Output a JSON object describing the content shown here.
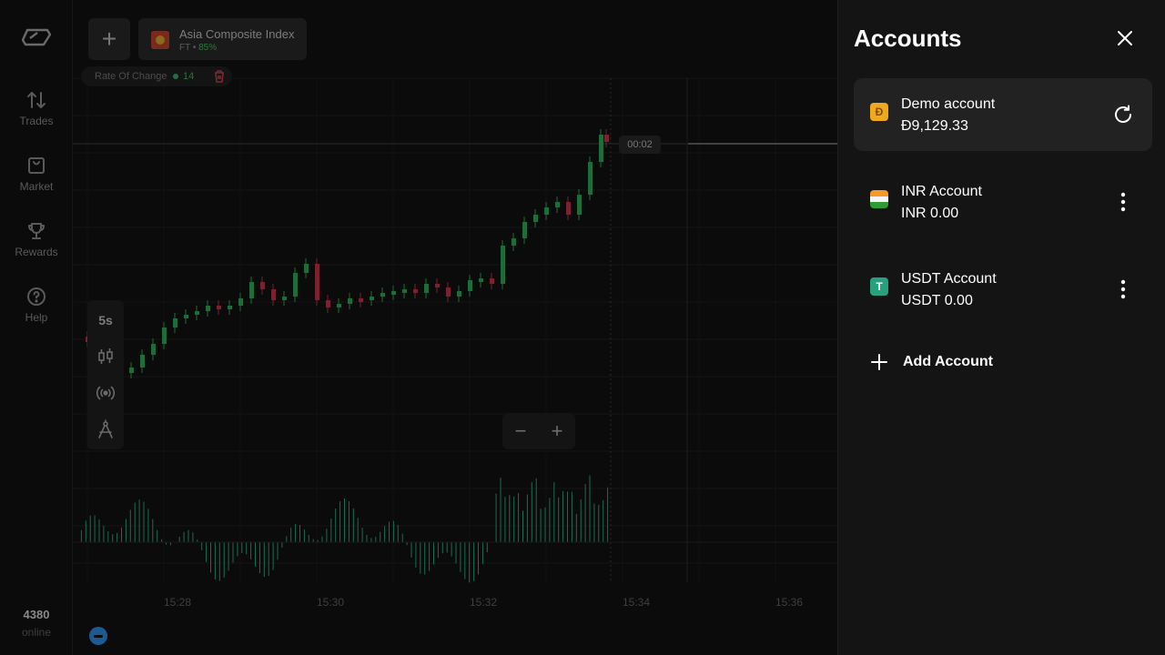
{
  "sidebar": {
    "items": [
      {
        "label": "Trades",
        "icon": "arrows-up-down-icon"
      },
      {
        "label": "Market",
        "icon": "shopping-bag-icon"
      },
      {
        "label": "Rewards",
        "icon": "trophy-icon"
      },
      {
        "label": "Help",
        "icon": "help-circle-icon"
      }
    ],
    "online_count": "4380",
    "online_label": "online"
  },
  "chart": {
    "asset_name": "Asia Composite Index",
    "asset_type": "FT",
    "asset_separator": "•",
    "asset_payout": "85%",
    "indicator_label": "Rate Of Change",
    "indicator_value": "14",
    "timeframe": "5s",
    "timer": "00:02",
    "time_ticks": [
      "15:28",
      "15:30",
      "15:32",
      "15:34",
      "15:36"
    ],
    "zoom_out": "−",
    "zoom_in": "+",
    "add_asset": "+",
    "colors": {
      "up": "#1f6b3a",
      "down": "#7a2230",
      "volume": "#1d6b52"
    }
  },
  "accounts_panel": {
    "title": "Accounts",
    "accounts": [
      {
        "name": "Demo account",
        "balance": "Đ9,129.33",
        "icon_text": "Đ",
        "active": true,
        "action": "refresh-icon"
      },
      {
        "name": "INR Account",
        "balance": "INR 0.00",
        "icon_text": "",
        "active": false,
        "action": "more-vertical-icon"
      },
      {
        "name": "USDT Account",
        "balance": "USDT 0.00",
        "icon_text": "T",
        "active": false,
        "action": "more-vertical-icon"
      }
    ],
    "add_account_label": "Add Account"
  }
}
